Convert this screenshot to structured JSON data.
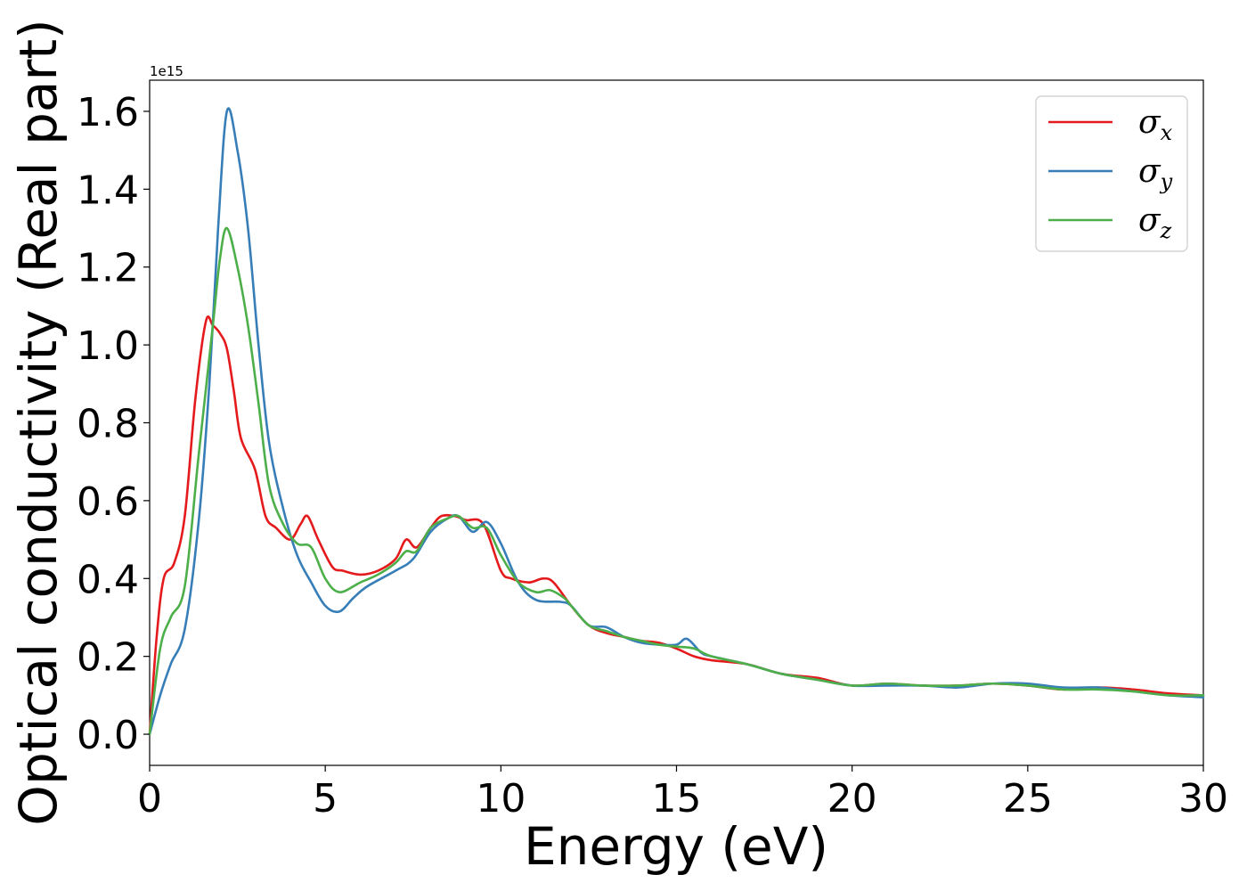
{
  "chart_data": {
    "type": "line",
    "title": "",
    "xlabel": "Energy (eV)",
    "ylabel": "Optical conductivity (Real part)",
    "y_offset_text": "1e15",
    "xlim": [
      0,
      30
    ],
    "ylim": [
      -0.08,
      1.68
    ],
    "x_ticks": [
      0,
      5,
      10,
      15,
      20,
      25,
      30
    ],
    "x_tick_labels": [
      "0",
      "5",
      "10",
      "15",
      "20",
      "25",
      "30"
    ],
    "y_ticks": [
      0.0,
      0.2,
      0.4,
      0.6,
      0.8,
      1.0,
      1.2,
      1.4,
      1.6
    ],
    "y_tick_labels": [
      "0.0",
      "0.2",
      "0.4",
      "0.6",
      "0.8",
      "1.0",
      "1.2",
      "1.4",
      "1.6"
    ],
    "grid": false,
    "legend_position": "top-right",
    "series": [
      {
        "name": "σx",
        "label_base": "σ",
        "label_sub": "x",
        "color": "#e41a1c",
        "points": [
          [
            0,
            0
          ],
          [
            0.2,
            0.25
          ],
          [
            0.4,
            0.4
          ],
          [
            0.7,
            0.44
          ],
          [
            1.0,
            0.56
          ],
          [
            1.3,
            0.86
          ],
          [
            1.6,
            1.06
          ],
          [
            1.8,
            1.05
          ],
          [
            2.0,
            1.03
          ],
          [
            2.2,
            0.99
          ],
          [
            2.4,
            0.88
          ],
          [
            2.6,
            0.76
          ],
          [
            3.0,
            0.68
          ],
          [
            3.3,
            0.56
          ],
          [
            3.6,
            0.53
          ],
          [
            4.0,
            0.5
          ],
          [
            4.3,
            0.54
          ],
          [
            4.5,
            0.56
          ],
          [
            4.8,
            0.5
          ],
          [
            5.2,
            0.43
          ],
          [
            5.5,
            0.42
          ],
          [
            6.0,
            0.41
          ],
          [
            6.5,
            0.42
          ],
          [
            7.0,
            0.45
          ],
          [
            7.3,
            0.5
          ],
          [
            7.6,
            0.48
          ],
          [
            8.0,
            0.53
          ],
          [
            8.3,
            0.56
          ],
          [
            8.7,
            0.56
          ],
          [
            9.0,
            0.55
          ],
          [
            9.5,
            0.54
          ],
          [
            10.0,
            0.42
          ],
          [
            10.3,
            0.4
          ],
          [
            10.8,
            0.39
          ],
          [
            11.2,
            0.4
          ],
          [
            11.5,
            0.39
          ],
          [
            12.0,
            0.33
          ],
          [
            12.5,
            0.28
          ],
          [
            13.0,
            0.26
          ],
          [
            13.5,
            0.25
          ],
          [
            14.0,
            0.24
          ],
          [
            14.5,
            0.235
          ],
          [
            15.0,
            0.22
          ],
          [
            15.5,
            0.2
          ],
          [
            16.0,
            0.19
          ],
          [
            17.0,
            0.18
          ],
          [
            18.0,
            0.155
          ],
          [
            19.0,
            0.145
          ],
          [
            20.0,
            0.125
          ],
          [
            21.0,
            0.13
          ],
          [
            22.0,
            0.125
          ],
          [
            23.0,
            0.125
          ],
          [
            24.0,
            0.13
          ],
          [
            25.0,
            0.125
          ],
          [
            26.0,
            0.115
          ],
          [
            27.0,
            0.12
          ],
          [
            28.0,
            0.115
          ],
          [
            29.0,
            0.105
          ],
          [
            30.0,
            0.1
          ]
        ]
      },
      {
        "name": "σy",
        "label_base": "σ",
        "label_sub": "y",
        "color": "#377eb8",
        "points": [
          [
            0,
            0
          ],
          [
            0.3,
            0.1
          ],
          [
            0.6,
            0.18
          ],
          [
            1.0,
            0.27
          ],
          [
            1.4,
            0.55
          ],
          [
            1.7,
            0.9
          ],
          [
            1.95,
            1.3
          ],
          [
            2.2,
            1.6
          ],
          [
            2.5,
            1.5
          ],
          [
            2.8,
            1.3
          ],
          [
            3.1,
            1.0
          ],
          [
            3.4,
            0.75
          ],
          [
            3.8,
            0.58
          ],
          [
            4.2,
            0.46
          ],
          [
            4.6,
            0.39
          ],
          [
            5.0,
            0.33
          ],
          [
            5.4,
            0.315
          ],
          [
            5.8,
            0.35
          ],
          [
            6.2,
            0.38
          ],
          [
            7.0,
            0.42
          ],
          [
            7.5,
            0.45
          ],
          [
            8.0,
            0.52
          ],
          [
            8.5,
            0.555
          ],
          [
            8.8,
            0.56
          ],
          [
            9.2,
            0.52
          ],
          [
            9.6,
            0.545
          ],
          [
            10.0,
            0.49
          ],
          [
            10.5,
            0.39
          ],
          [
            11.0,
            0.345
          ],
          [
            11.7,
            0.34
          ],
          [
            12.0,
            0.33
          ],
          [
            12.5,
            0.28
          ],
          [
            13.0,
            0.275
          ],
          [
            13.5,
            0.25
          ],
          [
            14.0,
            0.235
          ],
          [
            14.5,
            0.23
          ],
          [
            15.0,
            0.23
          ],
          [
            15.3,
            0.245
          ],
          [
            15.7,
            0.21
          ],
          [
            16.0,
            0.2
          ],
          [
            17.0,
            0.18
          ],
          [
            18.0,
            0.155
          ],
          [
            19.0,
            0.14
          ],
          [
            20.0,
            0.125
          ],
          [
            21.0,
            0.125
          ],
          [
            22.0,
            0.125
          ],
          [
            23.0,
            0.12
          ],
          [
            24.0,
            0.13
          ],
          [
            25.0,
            0.13
          ],
          [
            26.0,
            0.12
          ],
          [
            27.0,
            0.12
          ],
          [
            28.0,
            0.11
          ],
          [
            29.0,
            0.1
          ],
          [
            30.0,
            0.095
          ]
        ]
      },
      {
        "name": "σz",
        "label_base": "σ",
        "label_sub": "z",
        "color": "#4daf4a",
        "points": [
          [
            0,
            0
          ],
          [
            0.3,
            0.22
          ],
          [
            0.6,
            0.3
          ],
          [
            1.0,
            0.38
          ],
          [
            1.4,
            0.72
          ],
          [
            1.8,
            1.05
          ],
          [
            2.0,
            1.22
          ],
          [
            2.2,
            1.3
          ],
          [
            2.5,
            1.2
          ],
          [
            2.8,
            1.05
          ],
          [
            3.1,
            0.85
          ],
          [
            3.4,
            0.64
          ],
          [
            3.8,
            0.54
          ],
          [
            4.2,
            0.49
          ],
          [
            4.6,
            0.48
          ],
          [
            5.0,
            0.4
          ],
          [
            5.4,
            0.365
          ],
          [
            6.0,
            0.39
          ],
          [
            6.5,
            0.41
          ],
          [
            7.0,
            0.44
          ],
          [
            7.3,
            0.47
          ],
          [
            7.6,
            0.47
          ],
          [
            8.0,
            0.53
          ],
          [
            8.5,
            0.555
          ],
          [
            8.8,
            0.56
          ],
          [
            9.2,
            0.53
          ],
          [
            9.6,
            0.53
          ],
          [
            10.0,
            0.46
          ],
          [
            10.5,
            0.39
          ],
          [
            11.0,
            0.365
          ],
          [
            11.4,
            0.37
          ],
          [
            11.8,
            0.35
          ],
          [
            12.0,
            0.33
          ],
          [
            12.5,
            0.28
          ],
          [
            13.0,
            0.265
          ],
          [
            13.5,
            0.25
          ],
          [
            14.0,
            0.24
          ],
          [
            14.5,
            0.23
          ],
          [
            15.0,
            0.225
          ],
          [
            15.5,
            0.22
          ],
          [
            16.0,
            0.2
          ],
          [
            17.0,
            0.18
          ],
          [
            18.0,
            0.155
          ],
          [
            19.0,
            0.14
          ],
          [
            20.0,
            0.125
          ],
          [
            21.0,
            0.13
          ],
          [
            22.0,
            0.125
          ],
          [
            23.0,
            0.125
          ],
          [
            24.0,
            0.13
          ],
          [
            25.0,
            0.125
          ],
          [
            26.0,
            0.115
          ],
          [
            27.0,
            0.115
          ],
          [
            28.0,
            0.11
          ],
          [
            29.0,
            0.1
          ],
          [
            30.0,
            0.1
          ]
        ]
      }
    ]
  }
}
